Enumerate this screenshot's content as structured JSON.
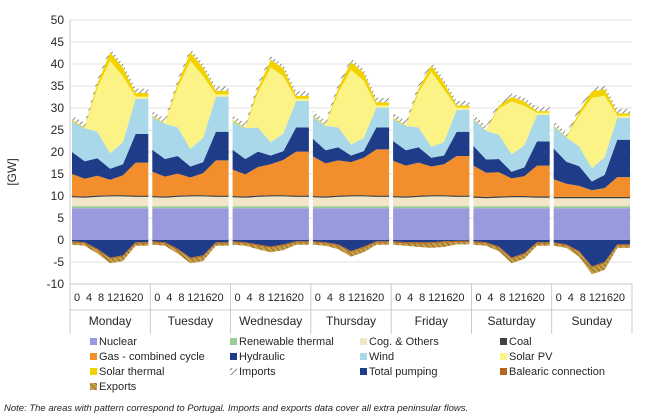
{
  "chart_data": {
    "type": "area",
    "stacked": true,
    "ylabel": "[GW]",
    "ylim": [
      -10,
      50
    ],
    "yticks": [
      -10,
      -5,
      0,
      5,
      10,
      15,
      20,
      25,
      30,
      35,
      40,
      45,
      50
    ],
    "hour_ticks": [
      "0",
      "4",
      "8",
      "12",
      "16",
      "20"
    ],
    "days": [
      "Monday",
      "Tuesday",
      "Wednesday",
      "Thursday",
      "Friday",
      "Saturday",
      "Sunday"
    ],
    "x_hours": [
      0,
      4,
      8,
      12,
      16,
      20
    ],
    "grid": true,
    "legend_position": "bottom",
    "note": "Note: The areas with pattern correspond to Portugal. Imports and exports data cover all extra peninsular flows.",
    "series": [
      {
        "name": "Nuclear",
        "color": "#9999dd",
        "values": {
          "Monday": [
            7.2,
            7.2,
            7.2,
            7.2,
            7.2,
            7.2
          ],
          "Tuesday": [
            7.2,
            7.2,
            7.2,
            7.2,
            7.2,
            7.2
          ],
          "Wednesday": [
            7.2,
            7.2,
            7.2,
            7.2,
            7.2,
            7.2
          ],
          "Thursday": [
            7.2,
            7.2,
            7.2,
            7.2,
            7.2,
            7.2
          ],
          "Friday": [
            7.2,
            7.2,
            7.2,
            7.2,
            7.2,
            7.2
          ],
          "Saturday": [
            7.2,
            7.2,
            7.2,
            7.2,
            7.2,
            7.2
          ],
          "Sunday": [
            7.2,
            7.2,
            7.2,
            7.2,
            7.2,
            7.2
          ]
        }
      },
      {
        "name": "Renewable thermal",
        "color": "#99cc99",
        "values": {
          "Monday": [
            0.5,
            0.5,
            0.5,
            0.5,
            0.5,
            0.5
          ],
          "Tuesday": [
            0.5,
            0.5,
            0.5,
            0.5,
            0.5,
            0.5
          ],
          "Wednesday": [
            0.5,
            0.5,
            0.5,
            0.5,
            0.5,
            0.5
          ],
          "Thursday": [
            0.5,
            0.5,
            0.5,
            0.5,
            0.5,
            0.5
          ],
          "Friday": [
            0.5,
            0.5,
            0.5,
            0.5,
            0.5,
            0.5
          ],
          "Saturday": [
            0.5,
            0.5,
            0.5,
            0.5,
            0.5,
            0.5
          ],
          "Sunday": [
            0.5,
            0.5,
            0.5,
            0.5,
            0.5,
            0.5
          ]
        }
      },
      {
        "name": "Cog. & Others",
        "color": "#f2e6c9",
        "values": {
          "Monday": [
            2.0,
            1.9,
            2.1,
            2.2,
            2.2,
            2.1
          ],
          "Tuesday": [
            2.0,
            1.9,
            2.1,
            2.2,
            2.2,
            2.1
          ],
          "Wednesday": [
            2.0,
            1.9,
            2.1,
            2.2,
            2.2,
            2.1
          ],
          "Thursday": [
            2.0,
            1.9,
            2.1,
            2.2,
            2.2,
            2.1
          ],
          "Friday": [
            2.0,
            1.9,
            2.1,
            2.2,
            2.2,
            2.1
          ],
          "Saturday": [
            1.9,
            1.8,
            1.9,
            2.0,
            2.0,
            1.9
          ],
          "Sunday": [
            1.8,
            1.8,
            1.8,
            1.8,
            1.8,
            1.8
          ]
        }
      },
      {
        "name": "Coal",
        "color": "#404040",
        "values": {
          "Monday": [
            0.3,
            0.3,
            0.3,
            0.3,
            0.3,
            0.3
          ],
          "Tuesday": [
            0.3,
            0.3,
            0.3,
            0.3,
            0.3,
            0.3
          ],
          "Wednesday": [
            0.3,
            0.3,
            0.3,
            0.3,
            0.3,
            0.3
          ],
          "Thursday": [
            0.3,
            0.3,
            0.3,
            0.3,
            0.3,
            0.3
          ],
          "Friday": [
            0.3,
            0.3,
            0.3,
            0.3,
            0.3,
            0.3
          ],
          "Saturday": [
            0.3,
            0.3,
            0.3,
            0.3,
            0.3,
            0.3
          ],
          "Sunday": [
            0.3,
            0.3,
            0.3,
            0.3,
            0.3,
            0.3
          ]
        }
      },
      {
        "name": "Gas - combined cycle",
        "color": "#f28e2b",
        "values": {
          "Monday": [
            5.0,
            4.0,
            4.5,
            3.5,
            4.5,
            7.5
          ],
          "Tuesday": [
            5.5,
            4.5,
            5.0,
            4.0,
            5.0,
            8.0
          ],
          "Wednesday": [
            6.0,
            5.0,
            6.5,
            7.0,
            8.0,
            10.0
          ],
          "Thursday": [
            9.0,
            7.5,
            8.0,
            7.5,
            8.5,
            10.5
          ],
          "Friday": [
            8.0,
            7.0,
            7.5,
            6.5,
            7.0,
            9.0
          ],
          "Saturday": [
            7.0,
            5.5,
            5.5,
            4.0,
            4.5,
            7.0
          ],
          "Sunday": [
            4.0,
            3.0,
            2.5,
            1.5,
            2.0,
            4.5
          ]
        }
      },
      {
        "name": "Hydraulic",
        "color": "#1f3c88",
        "values": {
          "Monday": [
            5.0,
            4.0,
            4.0,
            2.5,
            2.5,
            6.5
          ],
          "Tuesday": [
            5.0,
            4.0,
            4.0,
            2.5,
            2.5,
            6.5
          ],
          "Wednesday": [
            4.5,
            3.5,
            3.5,
            2.0,
            2.0,
            5.5
          ],
          "Thursday": [
            4.0,
            3.0,
            3.0,
            1.5,
            1.5,
            5.0
          ],
          "Friday": [
            4.5,
            3.5,
            3.5,
            2.0,
            2.0,
            5.5
          ],
          "Saturday": [
            4.5,
            3.0,
            3.0,
            1.5,
            2.0,
            5.5
          ],
          "Sunday": [
            7.0,
            5.0,
            4.5,
            2.0,
            3.0,
            8.5
          ]
        }
      },
      {
        "name": "Wind",
        "color": "#a9d8ea",
        "values": {
          "Monday": [
            7.0,
            7.5,
            6.0,
            3.5,
            5.0,
            8.0
          ],
          "Tuesday": [
            7.5,
            8.0,
            6.5,
            4.0,
            5.5,
            8.0
          ],
          "Wednesday": [
            6.5,
            7.0,
            5.5,
            3.0,
            4.0,
            6.0
          ],
          "Thursday": [
            5.0,
            5.5,
            4.5,
            2.5,
            3.0,
            4.5
          ],
          "Friday": [
            5.0,
            5.5,
            4.5,
            2.5,
            3.0,
            5.0
          ],
          "Saturday": [
            6.0,
            6.5,
            5.5,
            4.0,
            5.0,
            6.0
          ],
          "Sunday": [
            5.0,
            5.5,
            4.5,
            3.0,
            4.0,
            5.0
          ]
        }
      },
      {
        "name": "Solar PV",
        "color": "#fbf385",
        "values": {
          "Monday": [
            0,
            0,
            10.0,
            21.0,
            15.0,
            0.5
          ],
          "Tuesday": [
            0,
            0,
            9.0,
            20.0,
            14.0,
            0.5
          ],
          "Wednesday": [
            0,
            0,
            8.0,
            17.0,
            13.0,
            0.5
          ],
          "Thursday": [
            0,
            0,
            8.0,
            17.0,
            13.0,
            0.5
          ],
          "Friday": [
            0,
            0,
            8.0,
            17.0,
            12.0,
            0.5
          ],
          "Saturday": [
            0,
            0,
            6.0,
            12.0,
            9.0,
            0.5
          ],
          "Sunday": [
            0,
            0,
            7.0,
            16.0,
            14.0,
            0.5
          ]
        }
      },
      {
        "name": "Solar thermal",
        "color": "#f2d300",
        "values": {
          "Monday": [
            0.3,
            0.2,
            1.0,
            2.0,
            2.0,
            0.8
          ],
          "Tuesday": [
            0.3,
            0.2,
            1.0,
            2.0,
            2.0,
            0.8
          ],
          "Wednesday": [
            0.3,
            0.2,
            1.0,
            1.8,
            1.8,
            0.7
          ],
          "Thursday": [
            0.3,
            0.2,
            1.0,
            1.8,
            1.8,
            0.7
          ],
          "Friday": [
            0.3,
            0.2,
            0.8,
            1.5,
            1.5,
            0.5
          ],
          "Saturday": [
            0.2,
            0.1,
            0.6,
            1.0,
            1.0,
            0.4
          ],
          "Sunday": [
            0.2,
            0.1,
            0.8,
            1.5,
            1.5,
            0.5
          ]
        }
      },
      {
        "name": "Imports",
        "color": "#8c8c8c",
        "values": {
          "Monday": [
            1.0,
            1.0,
            1.0,
            0.8,
            0.8,
            1.0
          ],
          "Tuesday": [
            1.0,
            1.0,
            1.0,
            0.8,
            0.8,
            1.0
          ],
          "Wednesday": [
            1.0,
            1.0,
            1.0,
            0.8,
            0.8,
            1.0
          ],
          "Thursday": [
            1.0,
            1.0,
            1.0,
            0.8,
            0.8,
            1.0
          ],
          "Friday": [
            1.0,
            1.0,
            1.0,
            0.8,
            0.8,
            1.0
          ],
          "Saturday": [
            1.0,
            1.0,
            1.0,
            0.8,
            0.8,
            1.0
          ],
          "Sunday": [
            1.0,
            1.0,
            1.0,
            0.8,
            0.8,
            1.0
          ]
        }
      },
      {
        "name": "Total pumping",
        "color": "#1f3c88",
        "values": {
          "Monday": [
            -0.3,
            -0.5,
            -2.0,
            -4.0,
            -3.5,
            -0.5
          ],
          "Tuesday": [
            -0.3,
            -0.5,
            -2.0,
            -4.0,
            -3.5,
            -0.5
          ],
          "Wednesday": [
            -0.3,
            -0.5,
            -1.0,
            -1.5,
            -1.0,
            -0.3
          ],
          "Thursday": [
            -0.3,
            -0.5,
            -1.0,
            -2.5,
            -1.5,
            -0.3
          ],
          "Friday": [
            -0.3,
            -0.5,
            -0.5,
            -0.5,
            -0.3,
            -0.2
          ],
          "Saturday": [
            -0.3,
            -0.5,
            -1.5,
            -4.0,
            -3.0,
            -0.5
          ],
          "Sunday": [
            -0.5,
            -1.0,
            -2.5,
            -6.0,
            -5.0,
            -1.0
          ]
        }
      },
      {
        "name": "Balearic connection",
        "color": "#b5651d",
        "values": {
          "Monday": [
            -0.3,
            -0.3,
            -0.3,
            -0.3,
            -0.3,
            -0.3
          ],
          "Tuesday": [
            -0.3,
            -0.3,
            -0.3,
            -0.3,
            -0.3,
            -0.3
          ],
          "Wednesday": [
            -0.3,
            -0.3,
            -0.3,
            -0.3,
            -0.3,
            -0.3
          ],
          "Thursday": [
            -0.3,
            -0.3,
            -0.3,
            -0.3,
            -0.3,
            -0.3
          ],
          "Friday": [
            -0.3,
            -0.3,
            -0.3,
            -0.3,
            -0.3,
            -0.3
          ],
          "Saturday": [
            -0.3,
            -0.3,
            -0.3,
            -0.3,
            -0.3,
            -0.3
          ],
          "Sunday": [
            -0.3,
            -0.3,
            -0.3,
            -0.3,
            -0.3,
            -0.3
          ]
        }
      },
      {
        "name": "Exports",
        "color": "#c8a048",
        "values": {
          "Monday": [
            -0.5,
            -0.5,
            -0.8,
            -1.0,
            -1.0,
            -0.5
          ],
          "Tuesday": [
            -0.5,
            -0.5,
            -0.8,
            -1.0,
            -1.0,
            -0.5
          ],
          "Wednesday": [
            -0.5,
            -0.5,
            -0.8,
            -1.0,
            -1.0,
            -0.5
          ],
          "Thursday": [
            -0.5,
            -0.5,
            -0.8,
            -1.0,
            -1.0,
            -0.5
          ],
          "Friday": [
            -0.5,
            -0.5,
            -0.8,
            -1.0,
            -1.0,
            -0.5
          ],
          "Saturday": [
            -0.5,
            -0.5,
            -0.8,
            -1.0,
            -1.0,
            -0.5
          ],
          "Sunday": [
            -0.5,
            -0.5,
            -1.0,
            -1.5,
            -1.5,
            -0.5
          ]
        }
      }
    ],
    "legend": [
      "Nuclear",
      "Renewable thermal",
      "Cog. & Others",
      "Coal",
      "Gas - combined cycle",
      "Hydraulic",
      "Wind",
      "Solar PV",
      "Solar thermal",
      "Imports",
      "Total pumping",
      "Balearic connection",
      "Exports"
    ]
  }
}
